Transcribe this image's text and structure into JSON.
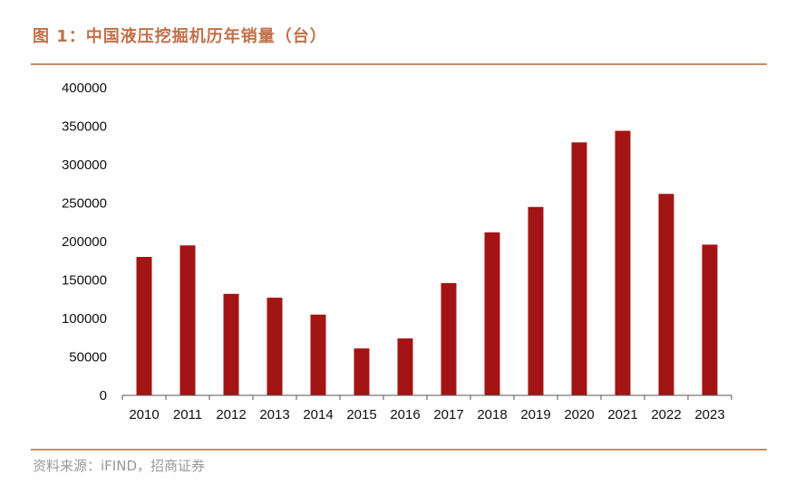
{
  "figure_title": "图 1：中国液压挖掘机历年销量（台）",
  "source": "资料来源：iFIND，招商证券",
  "colors": {
    "bar": "#a31515",
    "accent": "#c0704a",
    "rule": "#c98a68",
    "axis": "#555555"
  },
  "chart_data": {
    "type": "bar",
    "title": "",
    "xlabel": "",
    "ylabel": "",
    "categories": [
      "2010",
      "2011",
      "2012",
      "2013",
      "2014",
      "2015",
      "2016",
      "2017",
      "2018",
      "2019",
      "2020",
      "2021",
      "2022",
      "2023"
    ],
    "values": [
      180000,
      195000,
      132000,
      127000,
      105000,
      61000,
      74000,
      146000,
      212000,
      245000,
      329000,
      344000,
      262000,
      196000
    ],
    "ylim": [
      0,
      400000
    ],
    "yticks": [
      0,
      50000,
      100000,
      150000,
      200000,
      250000,
      300000,
      350000,
      400000
    ],
    "grid": false,
    "legend": "none"
  }
}
